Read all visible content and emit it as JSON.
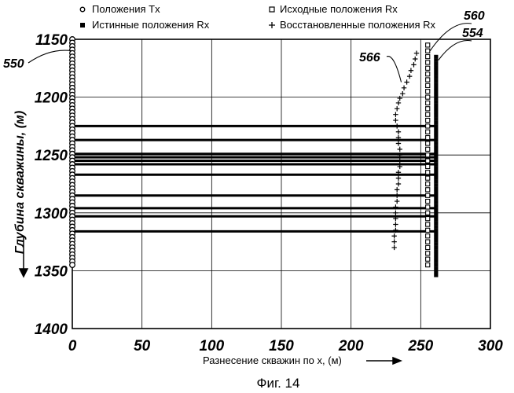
{
  "chart_data": {
    "type": "scatter",
    "xlabel": "Разнесение скважин по х, (м)",
    "ylabel": "Глубина скважины, (м)",
    "xlim": [
      0,
      300
    ],
    "ylim": [
      1150,
      1400
    ],
    "y_inverted": true,
    "grid": true,
    "x_ticks": [
      0,
      50,
      100,
      150,
      200,
      250,
      300
    ],
    "x_tick_labels": [
      "0",
      "50",
      "100",
      "150",
      "200",
      "250",
      "300"
    ],
    "y_ticks": [
      1150,
      1200,
      1250,
      1300,
      1350,
      1400
    ],
    "y_tick_labels": [
      "1150",
      "1200",
      "1250",
      "1300",
      "1350",
      "1400"
    ],
    "legend": {
      "placement": "top",
      "entries": [
        {
          "label": "Положения Tx",
          "marker": "circle"
        },
        {
          "label": "Исходные положения Rx",
          "marker": "square"
        },
        {
          "label": "Истинные положения Rx",
          "marker": "filled-square"
        },
        {
          "label": "Восстановленные положения Rx",
          "marker": "plus"
        }
      ]
    },
    "series": [
      {
        "name": "Положения Tx",
        "marker": "circle",
        "x": 0,
        "y_start": 1150,
        "y_end": 1345,
        "y_step": 3
      },
      {
        "name": "Исходные положения Rx",
        "marker": "square",
        "x": 255,
        "y_start": 1155,
        "y_end": 1345,
        "y_step": 5
      },
      {
        "name": "Истинные положения Rx",
        "marker": "filled-square",
        "x": 261,
        "y_start": 1165,
        "y_end": 1355,
        "y_step": 3
      },
      {
        "name": "Восстановленные положения Rx",
        "marker": "plus",
        "points": [
          [
            247,
            1162
          ],
          [
            246,
            1167
          ],
          [
            245,
            1172
          ],
          [
            243,
            1177
          ],
          [
            242,
            1182
          ],
          [
            240,
            1187
          ],
          [
            238,
            1192
          ],
          [
            237,
            1197
          ],
          [
            235,
            1201
          ],
          [
            234,
            1205
          ],
          [
            233,
            1210
          ],
          [
            232,
            1215
          ],
          [
            232,
            1220
          ],
          [
            233,
            1225
          ],
          [
            234,
            1230
          ],
          [
            234,
            1235
          ],
          [
            234,
            1240
          ],
          [
            235,
            1245
          ],
          [
            235,
            1250
          ],
          [
            235,
            1255
          ],
          [
            235,
            1260
          ],
          [
            234,
            1265
          ],
          [
            234,
            1270
          ],
          [
            234,
            1275
          ],
          [
            233,
            1280
          ],
          [
            233,
            1285
          ],
          [
            233,
            1290
          ],
          [
            232,
            1295
          ],
          [
            232,
            1300
          ],
          [
            232,
            1305
          ],
          [
            232,
            1310
          ],
          [
            232,
            1315
          ],
          [
            231,
            1320
          ],
          [
            231,
            1325
          ],
          [
            231,
            1330
          ]
        ]
      }
    ],
    "ray_depths": [
      1225,
      1237,
      1249,
      1252,
      1255,
      1258,
      1267,
      1285,
      1296,
      1303,
      1316
    ],
    "ray_x_range": [
      0,
      261
    ],
    "annotations": [
      {
        "text": "550",
        "points_to": [
          0,
          1160
        ]
      },
      {
        "text": "566",
        "points_to": [
          236,
          1187
        ]
      },
      {
        "text": "560",
        "points_to": [
          255,
          1160
        ]
      },
      {
        "text": "554",
        "points_to": [
          261,
          1168
        ]
      }
    ]
  },
  "caption": "Фиг. 14"
}
